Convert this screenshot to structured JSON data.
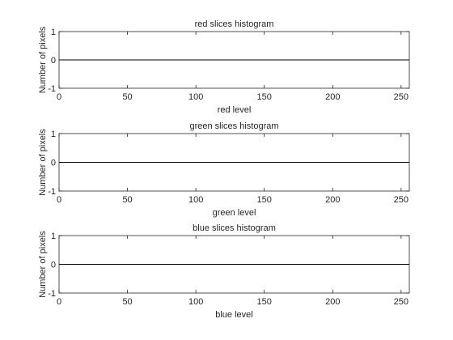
{
  "chart_data": [
    {
      "type": "line",
      "title": "red slices histogram",
      "xlabel": "red level",
      "ylabel": "Number of pixels",
      "xlim": [
        0,
        256
      ],
      "ylim": [
        -1,
        1
      ],
      "xticks": [
        0,
        50,
        100,
        150,
        200,
        250
      ],
      "yticks": [
        -1,
        0,
        1
      ],
      "grid": false,
      "series": [
        {
          "x": [
            0,
            256
          ],
          "values": [
            0,
            0
          ]
        }
      ]
    },
    {
      "type": "line",
      "title": "green slices histogram",
      "xlabel": "green level",
      "ylabel": "Number of pixels",
      "xlim": [
        0,
        256
      ],
      "ylim": [
        -1,
        1
      ],
      "xticks": [
        0,
        50,
        100,
        150,
        200,
        250
      ],
      "yticks": [
        -1,
        0,
        1
      ],
      "grid": false,
      "series": [
        {
          "x": [
            0,
            256
          ],
          "values": [
            0,
            0
          ]
        }
      ]
    },
    {
      "type": "line",
      "title": "blue slices histogram",
      "xlabel": "blue level",
      "ylabel": "Number of pixels",
      "xlim": [
        0,
        256
      ],
      "ylim": [
        -1,
        1
      ],
      "xticks": [
        0,
        50,
        100,
        150,
        200,
        250
      ],
      "yticks": [
        -1,
        0,
        1
      ],
      "grid": false,
      "series": [
        {
          "x": [
            0,
            256
          ],
          "values": [
            0,
            0
          ]
        }
      ]
    }
  ]
}
